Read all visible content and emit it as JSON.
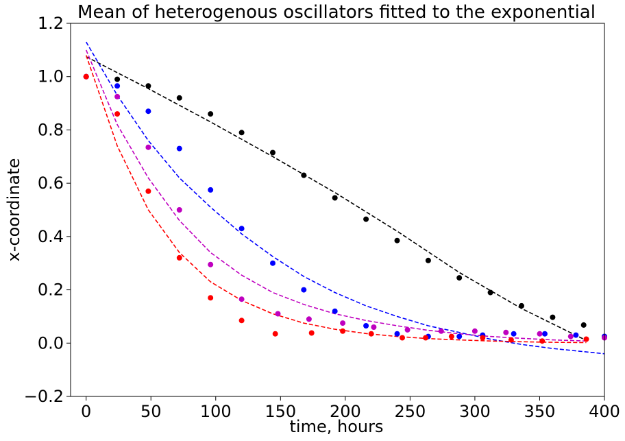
{
  "chart_data": {
    "type": "scatter",
    "title": "Mean of heterogenous oscillators fitted to the exponential",
    "xlabel": "time, hours",
    "ylabel": "x-coordinate",
    "xlim": [
      -12,
      400
    ],
    "ylim": [
      -0.2,
      1.2
    ],
    "xticks": [
      0,
      50,
      100,
      150,
      200,
      250,
      300,
      350,
      400
    ],
    "yticks": [
      -0.2,
      0.0,
      0.2,
      0.4,
      0.6,
      0.8,
      1.0,
      1.2
    ],
    "xtick_labels": [
      "0",
      "50",
      "100",
      "150",
      "200",
      "250",
      "300",
      "350",
      "400"
    ],
    "ytick_labels": [
      "−0.2",
      "0.0",
      "0.2",
      "0.4",
      "0.6",
      "0.8",
      "1.0",
      "1.2"
    ],
    "grid": false,
    "legend": "none",
    "series": [
      {
        "color": "#000000",
        "points": [
          [
            0,
            1.0
          ],
          [
            24,
            0.99
          ],
          [
            48,
            0.965
          ],
          [
            72,
            0.92
          ],
          [
            96,
            0.86
          ],
          [
            120,
            0.79
          ],
          [
            144,
            0.715
          ],
          [
            168,
            0.63
          ],
          [
            192,
            0.545
          ],
          [
            216,
            0.465
          ],
          [
            240,
            0.385
          ],
          [
            264,
            0.31
          ],
          [
            288,
            0.245
          ],
          [
            312,
            0.19
          ],
          [
            336,
            0.14
          ],
          [
            360,
            0.097
          ],
          [
            384,
            0.068
          ],
          [
            400,
            0.025
          ]
        ],
        "fit": [
          [
            0,
            1.075
          ],
          [
            48,
            0.955
          ],
          [
            96,
            0.83
          ],
          [
            144,
            0.7
          ],
          [
            192,
            0.565
          ],
          [
            240,
            0.42
          ],
          [
            288,
            0.265
          ],
          [
            336,
            0.13
          ],
          [
            384,
            0.015
          ]
        ]
      },
      {
        "color": "#0000ff",
        "points": [
          [
            0,
            1.0
          ],
          [
            24,
            0.965
          ],
          [
            48,
            0.87
          ],
          [
            72,
            0.73
          ],
          [
            96,
            0.575
          ],
          [
            120,
            0.43
          ],
          [
            144,
            0.3
          ],
          [
            168,
            0.2
          ],
          [
            192,
            0.12
          ],
          [
            216,
            0.065
          ],
          [
            240,
            0.035
          ],
          [
            264,
            0.025
          ],
          [
            288,
            0.025
          ],
          [
            306,
            0.03
          ],
          [
            330,
            0.035
          ],
          [
            354,
            0.035
          ],
          [
            378,
            0.03
          ],
          [
            400,
            0.025
          ]
        ],
        "fit": [
          [
            0,
            1.13
          ],
          [
            24,
            0.93
          ],
          [
            48,
            0.76
          ],
          [
            72,
            0.62
          ],
          [
            96,
            0.51
          ],
          [
            120,
            0.41
          ],
          [
            144,
            0.325
          ],
          [
            168,
            0.25
          ],
          [
            192,
            0.19
          ],
          [
            216,
            0.14
          ],
          [
            240,
            0.1
          ],
          [
            264,
            0.065
          ],
          [
            288,
            0.04
          ],
          [
            312,
            0.015
          ],
          [
            336,
            -0.005
          ],
          [
            360,
            -0.02
          ],
          [
            400,
            -0.04
          ]
        ]
      },
      {
        "color": "#bf00bf",
        "points": [
          [
            0,
            1.0
          ],
          [
            24,
            0.925
          ],
          [
            48,
            0.735
          ],
          [
            72,
            0.5
          ],
          [
            96,
            0.295
          ],
          [
            120,
            0.165
          ],
          [
            148,
            0.11
          ],
          [
            172,
            0.09
          ],
          [
            198,
            0.075
          ],
          [
            222,
            0.06
          ],
          [
            248,
            0.05
          ],
          [
            274,
            0.045
          ],
          [
            300,
            0.045
          ],
          [
            324,
            0.04
          ],
          [
            350,
            0.035
          ],
          [
            374,
            0.025
          ],
          [
            400,
            0.02
          ]
        ],
        "fit": [
          [
            0,
            1.1
          ],
          [
            24,
            0.82
          ],
          [
            48,
            0.62
          ],
          [
            72,
            0.46
          ],
          [
            96,
            0.34
          ],
          [
            120,
            0.255
          ],
          [
            144,
            0.19
          ],
          [
            168,
            0.145
          ],
          [
            192,
            0.11
          ],
          [
            216,
            0.085
          ],
          [
            240,
            0.065
          ],
          [
            264,
            0.048
          ],
          [
            288,
            0.035
          ],
          [
            312,
            0.025
          ],
          [
            336,
            0.018
          ],
          [
            360,
            0.012
          ],
          [
            386,
            0.008
          ]
        ]
      },
      {
        "color": "#ff0000",
        "points": [
          [
            0,
            1.0
          ],
          [
            24,
            0.86
          ],
          [
            48,
            0.57
          ],
          [
            72,
            0.32
          ],
          [
            96,
            0.17
          ],
          [
            120,
            0.085
          ],
          [
            146,
            0.035
          ],
          [
            174,
            0.038
          ],
          [
            198,
            0.045
          ],
          [
            220,
            0.035
          ],
          [
            244,
            0.02
          ],
          [
            262,
            0.02
          ],
          [
            282,
            0.025
          ],
          [
            306,
            0.02
          ],
          [
            328,
            0.012
          ],
          [
            352,
            0.008
          ],
          [
            386,
            0.015
          ]
        ],
        "fit": [
          [
            0,
            1.08
          ],
          [
            24,
            0.74
          ],
          [
            48,
            0.5
          ],
          [
            72,
            0.34
          ],
          [
            96,
            0.23
          ],
          [
            120,
            0.16
          ],
          [
            144,
            0.11
          ],
          [
            168,
            0.075
          ],
          [
            192,
            0.052
          ],
          [
            216,
            0.036
          ],
          [
            240,
            0.025
          ],
          [
            264,
            0.017
          ],
          [
            288,
            0.012
          ],
          [
            312,
            0.008
          ],
          [
            336,
            0.005
          ],
          [
            360,
            0.003
          ],
          [
            386,
            0.002
          ]
        ]
      }
    ]
  }
}
